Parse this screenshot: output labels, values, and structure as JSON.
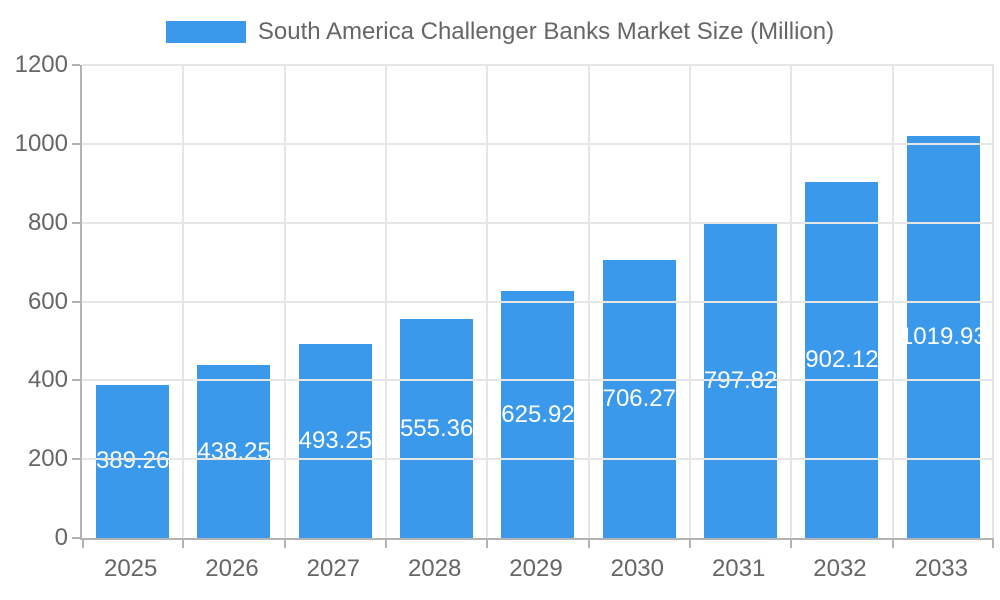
{
  "chart_data": {
    "type": "bar",
    "legend_label": "South America Challenger Banks Market Size (Million)",
    "categories": [
      "2025",
      "2026",
      "2027",
      "2028",
      "2029",
      "2030",
      "2031",
      "2032",
      "2033"
    ],
    "values": [
      389.26,
      438.25,
      493.25,
      555.36,
      625.92,
      706.27,
      797.82,
      902.12,
      1019.93
    ],
    "value_labels": [
      "389.26",
      "438.25",
      "493.25",
      "555.36",
      "625.92",
      "706.27",
      "797.82",
      "902.12",
      "1019.93"
    ],
    "title": "",
    "xlabel": "",
    "ylabel": "",
    "ylim": [
      0,
      1200
    ],
    "y_ticks": [
      0,
      200,
      400,
      600,
      800,
      1000,
      1200
    ],
    "grid": true,
    "legend_position": "top",
    "colors": {
      "bar": "#3B99EC",
      "grid": "#E6E6E6",
      "axis": "#B3B3B3",
      "text": "#666666",
      "data_label": "#FFFFFF",
      "background": "#FFFFFF"
    }
  }
}
